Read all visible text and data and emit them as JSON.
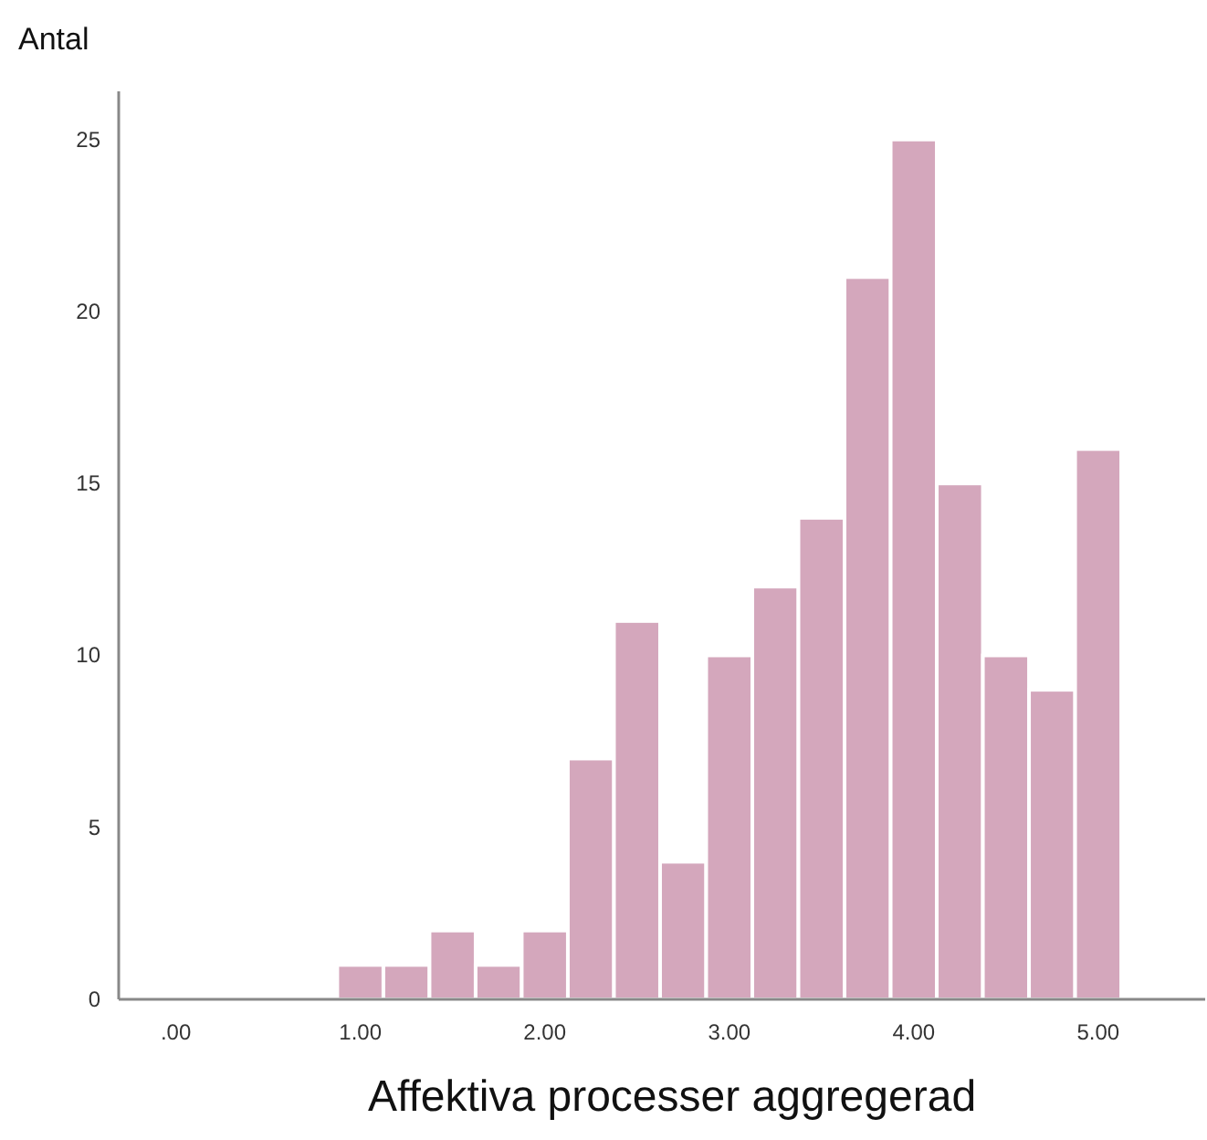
{
  "chart_data": {
    "type": "histogram",
    "xlabel": "Affektiva processer aggregerad",
    "ylabel": "Antal",
    "bins": [
      0.875,
      1.125,
      1.375,
      1.625,
      1.875,
      2.125,
      2.375,
      2.625,
      2.875,
      3.125,
      3.375,
      3.625,
      3.875,
      4.125,
      4.375,
      4.625,
      4.875,
      5.125
    ],
    "values": [
      1,
      1,
      2,
      1,
      2,
      7,
      11,
      4,
      10,
      12,
      14,
      21,
      25,
      15,
      10,
      9,
      16
    ],
    "color": "#d4a7bc",
    "xlim": [
      -0.31,
      5.58
    ],
    "xticks": [
      {
        "value": 0,
        "label": ".00"
      },
      {
        "value": 1,
        "label": "1.00"
      },
      {
        "value": 2,
        "label": "2.00"
      },
      {
        "value": 3,
        "label": "3.00"
      },
      {
        "value": 4,
        "label": "4.00"
      },
      {
        "value": 5,
        "label": "5.00"
      }
    ],
    "ylim": [
      0,
      26.4
    ],
    "yticks": [
      0,
      5,
      10,
      15,
      20,
      25
    ],
    "grid": false
  }
}
